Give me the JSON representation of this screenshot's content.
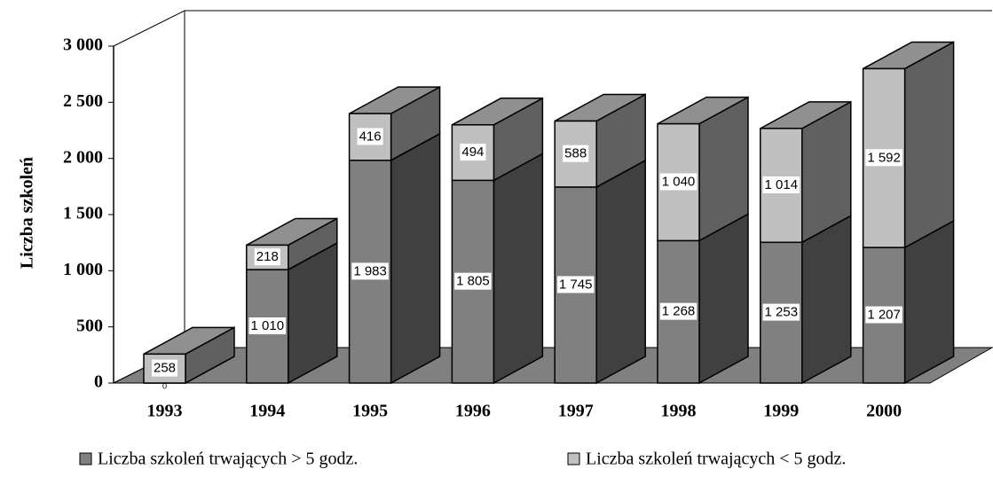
{
  "chart_data": {
    "type": "bar3d_stacked",
    "ylabel": "Liczba szkoleń",
    "categories": [
      "1993",
      "1994",
      "1995",
      "1996",
      "1997",
      "1998",
      "1999",
      "2000"
    ],
    "series": [
      {
        "name": "Liczba szkoleń trwających > 5 godz.",
        "color": "#808080",
        "values": [
          0,
          1010,
          1983,
          1805,
          1745,
          1268,
          1253,
          1207
        ],
        "value_labels": [
          "0",
          "1 010",
          "1 983",
          "1 805",
          "1 745",
          "1 268",
          "1 253",
          "1 207"
        ]
      },
      {
        "name": "Liczba szkoleń trwających < 5 godz.",
        "color": "#c0c0c0",
        "values": [
          258,
          218,
          416,
          494,
          588,
          1040,
          1014,
          1592
        ],
        "value_labels": [
          "258",
          "218",
          "416",
          "494",
          "588",
          "1 040",
          "1 014",
          "1 592"
        ]
      }
    ],
    "ylim": [
      0,
      3000
    ],
    "yticks": [
      0,
      500,
      {
        "value": 1000,
        "label": "1 000"
      },
      {
        "value": 1500,
        "label": "1 500"
      },
      {
        "value": 2000,
        "label": "2 000"
      },
      {
        "value": 2500,
        "label": "2 500"
      },
      {
        "value": 3000,
        "label": "3 000"
      }
    ],
    "legend": "bottom"
  }
}
